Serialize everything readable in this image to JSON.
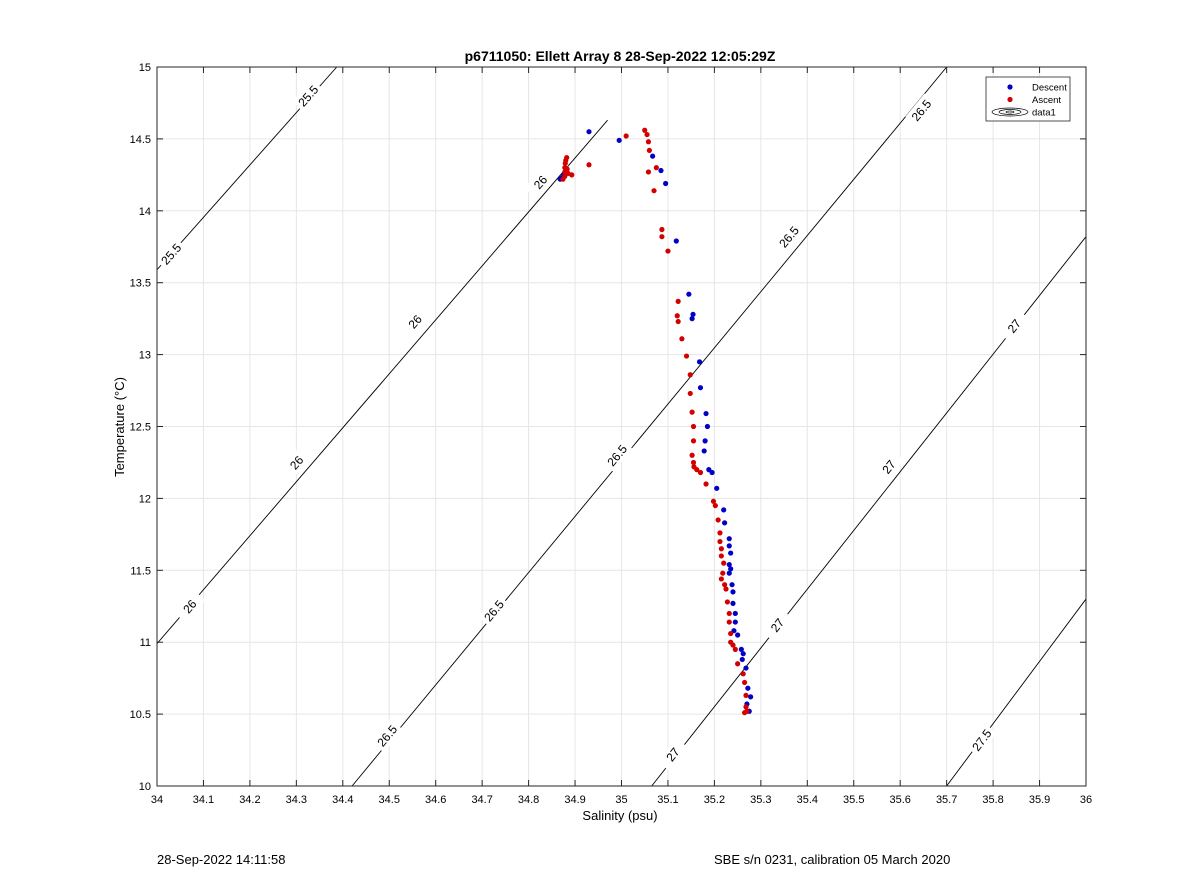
{
  "footer": {
    "left": "28-Sep-2022 14:11:58",
    "right": "SBE s/n 0231, calibration 05 March 2020"
  },
  "colors": {
    "descent": "#0000c8",
    "ascent": "#d40000",
    "contour": "#000000",
    "grid": "#e6e6e6"
  },
  "chart_data": {
    "type": "scatter",
    "title": "p6711050: Ellett Array 8 28-Sep-2022 12:05:29Z",
    "xlabel": "Salinity (psu)",
    "ylabel": "Temperature (°C)",
    "xlim": [
      34,
      36
    ],
    "ylim": [
      10,
      15
    ],
    "xticks": [
      "34",
      "34.1",
      "34.2",
      "34.3",
      "34.4",
      "34.5",
      "34.6",
      "34.7",
      "34.8",
      "34.9",
      "35",
      "35.1",
      "35.2",
      "35.3",
      "35.4",
      "35.5",
      "35.6",
      "35.7",
      "35.8",
      "35.9",
      "36"
    ],
    "yticks": [
      "10",
      "10.5",
      "11",
      "11.5",
      "12",
      "12.5",
      "13",
      "13.5",
      "14",
      "14.5",
      "15"
    ],
    "grid": true,
    "legend_position": "top-right",
    "legend": [
      "Descent",
      "Ascent",
      "data1"
    ],
    "series": [
      {
        "name": "Descent",
        "color": "#0000c8",
        "points": [
          [
            34.868,
            14.22
          ],
          [
            34.872,
            14.23
          ],
          [
            34.876,
            14.25
          ],
          [
            34.93,
            14.55
          ],
          [
            34.995,
            14.49
          ],
          [
            35.067,
            14.38
          ],
          [
            35.085,
            14.28
          ],
          [
            35.095,
            14.19
          ],
          [
            35.118,
            13.79
          ],
          [
            35.145,
            13.42
          ],
          [
            35.154,
            13.28
          ],
          [
            35.152,
            13.25
          ],
          [
            35.168,
            12.95
          ],
          [
            35.17,
            12.77
          ],
          [
            35.182,
            12.59
          ],
          [
            35.185,
            12.5
          ],
          [
            35.18,
            12.4
          ],
          [
            35.178,
            12.33
          ],
          [
            35.188,
            12.2
          ],
          [
            35.195,
            12.18
          ],
          [
            35.205,
            12.07
          ],
          [
            35.22,
            11.92
          ],
          [
            35.222,
            11.83
          ],
          [
            35.232,
            11.72
          ],
          [
            35.232,
            11.67
          ],
          [
            35.235,
            11.62
          ],
          [
            35.232,
            11.54
          ],
          [
            35.235,
            11.51
          ],
          [
            35.232,
            11.48
          ],
          [
            35.238,
            11.4
          ],
          [
            35.24,
            11.35
          ],
          [
            35.24,
            11.27
          ],
          [
            35.245,
            11.2
          ],
          [
            35.245,
            11.14
          ],
          [
            35.242,
            11.08
          ],
          [
            35.25,
            11.05
          ],
          [
            35.258,
            10.95
          ],
          [
            35.262,
            10.92
          ],
          [
            35.26,
            10.88
          ],
          [
            35.268,
            10.82
          ],
          [
            35.272,
            10.68
          ],
          [
            35.278,
            10.62
          ],
          [
            35.27,
            10.57
          ],
          [
            35.275,
            10.52
          ]
        ]
      },
      {
        "name": "Ascent",
        "color": "#d40000",
        "points": [
          [
            34.874,
            14.22
          ],
          [
            34.878,
            14.24
          ],
          [
            34.878,
            14.27
          ],
          [
            34.878,
            14.3
          ],
          [
            34.879,
            14.33
          ],
          [
            34.88,
            14.35
          ],
          [
            34.882,
            14.37
          ],
          [
            34.883,
            14.29
          ],
          [
            34.885,
            14.26
          ],
          [
            34.893,
            14.25
          ],
          [
            34.93,
            14.32
          ],
          [
            35.01,
            14.52
          ],
          [
            35.05,
            14.56
          ],
          [
            35.055,
            14.53
          ],
          [
            35.058,
            14.48
          ],
          [
            35.06,
            14.42
          ],
          [
            35.058,
            14.27
          ],
          [
            35.075,
            14.3
          ],
          [
            35.07,
            14.14
          ],
          [
            35.087,
            13.87
          ],
          [
            35.087,
            13.82
          ],
          [
            35.1,
            13.72
          ],
          [
            35.122,
            13.37
          ],
          [
            35.12,
            13.27
          ],
          [
            35.122,
            13.23
          ],
          [
            35.13,
            13.11
          ],
          [
            35.14,
            12.99
          ],
          [
            35.148,
            12.86
          ],
          [
            35.148,
            12.73
          ],
          [
            35.152,
            12.6
          ],
          [
            35.155,
            12.5
          ],
          [
            35.155,
            12.4
          ],
          [
            35.152,
            12.3
          ],
          [
            35.155,
            12.25
          ],
          [
            35.156,
            12.22
          ],
          [
            35.162,
            12.2
          ],
          [
            35.17,
            12.18
          ],
          [
            35.182,
            12.1
          ],
          [
            35.198,
            11.98
          ],
          [
            35.202,
            11.95
          ],
          [
            35.208,
            11.85
          ],
          [
            35.212,
            11.76
          ],
          [
            35.212,
            11.7
          ],
          [
            35.215,
            11.65
          ],
          [
            35.215,
            11.6
          ],
          [
            35.22,
            11.55
          ],
          [
            35.218,
            11.48
          ],
          [
            35.215,
            11.44
          ],
          [
            35.222,
            11.4
          ],
          [
            35.225,
            11.37
          ],
          [
            35.228,
            11.28
          ],
          [
            35.232,
            11.2
          ],
          [
            35.232,
            11.14
          ],
          [
            35.235,
            11.06
          ],
          [
            35.235,
            11.0
          ],
          [
            35.24,
            10.98
          ],
          [
            35.245,
            10.95
          ],
          [
            35.25,
            10.85
          ],
          [
            35.262,
            10.78
          ],
          [
            35.265,
            10.72
          ],
          [
            35.268,
            10.63
          ],
          [
            35.268,
            10.55
          ],
          [
            35.265,
            10.51
          ],
          [
            35.27,
            10.52
          ]
        ]
      }
    ],
    "contours": {
      "name": "data1",
      "lines": [
        {
          "label": "25.5",
          "from": [
            34.0,
            13.59
          ],
          "to": [
            34.387,
            15.0
          ]
        },
        {
          "label": "26",
          "from": [
            34.0,
            10.99
          ],
          "to": [
            34.97,
            14.63
          ]
        },
        {
          "label": "26.5",
          "from": [
            34.42,
            10.0
          ],
          "to": [
            35.7,
            15.0
          ]
        },
        {
          "label": "27",
          "from": [
            35.065,
            10.0
          ],
          "to": [
            36.0,
            13.82
          ]
        },
        {
          "label": "27.5",
          "from": [
            35.7,
            10.0
          ],
          "to": [
            36.0,
            11.3
          ]
        }
      ],
      "labels": [
        {
          "text": "25.5",
          "at": [
            34.03,
            13.7
          ]
        },
        {
          "text": "25.5",
          "at": [
            34.325,
            14.8
          ]
        },
        {
          "text": "26",
          "at": [
            34.07,
            11.25
          ]
        },
        {
          "text": "26",
          "at": [
            34.3,
            12.25
          ]
        },
        {
          "text": "26",
          "at": [
            34.555,
            13.23
          ]
        },
        {
          "text": "26",
          "at": [
            34.825,
            14.2
          ]
        },
        {
          "text": "26.5",
          "at": [
            34.495,
            10.35
          ]
        },
        {
          "text": "26.5",
          "at": [
            34.725,
            11.22
          ]
        },
        {
          "text": "26.5",
          "at": [
            34.99,
            12.3
          ]
        },
        {
          "text": "26.5",
          "at": [
            35.36,
            13.82
          ]
        },
        {
          "text": "26.5",
          "at": [
            35.645,
            14.7
          ]
        },
        {
          "text": "27",
          "at": [
            35.11,
            10.22
          ]
        },
        {
          "text": "27",
          "at": [
            35.335,
            11.12
          ]
        },
        {
          "text": "27",
          "at": [
            35.575,
            12.22
          ]
        },
        {
          "text": "27",
          "at": [
            35.845,
            13.2
          ]
        },
        {
          "text": "27.5",
          "at": [
            35.775,
            10.32
          ]
        }
      ]
    }
  }
}
